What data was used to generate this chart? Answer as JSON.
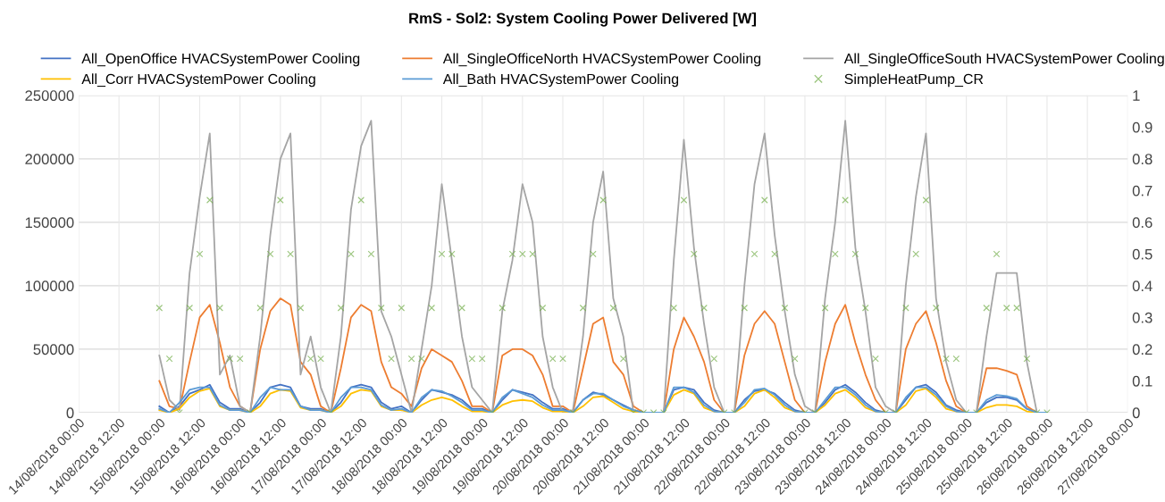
{
  "chart_data": {
    "type": "line",
    "title": "RmS - Sol2: System Cooling Power Delivered [W]",
    "x": [
      "2018-08-15T00:00",
      "2018-08-15T03:00",
      "2018-08-15T06:00",
      "2018-08-15T09:00",
      "2018-08-15T12:00",
      "2018-08-15T15:00",
      "2018-08-15T18:00",
      "2018-08-15T21:00",
      "2018-08-16T00:00",
      "2018-08-16T03:00",
      "2018-08-16T06:00",
      "2018-08-16T09:00",
      "2018-08-16T12:00",
      "2018-08-16T15:00",
      "2018-08-16T18:00",
      "2018-08-16T21:00",
      "2018-08-17T00:00",
      "2018-08-17T03:00",
      "2018-08-17T06:00",
      "2018-08-17T09:00",
      "2018-08-17T12:00",
      "2018-08-17T15:00",
      "2018-08-17T18:00",
      "2018-08-17T21:00",
      "2018-08-18T00:00",
      "2018-08-18T03:00",
      "2018-08-18T06:00",
      "2018-08-18T09:00",
      "2018-08-18T12:00",
      "2018-08-18T15:00",
      "2018-08-18T18:00",
      "2018-08-18T21:00",
      "2018-08-19T00:00",
      "2018-08-19T03:00",
      "2018-08-19T06:00",
      "2018-08-19T09:00",
      "2018-08-19T12:00",
      "2018-08-19T15:00",
      "2018-08-19T18:00",
      "2018-08-19T21:00",
      "2018-08-20T00:00",
      "2018-08-20T03:00",
      "2018-08-20T06:00",
      "2018-08-20T09:00",
      "2018-08-20T12:00",
      "2018-08-20T15:00",
      "2018-08-20T18:00",
      "2018-08-20T21:00",
      "2018-08-21T00:00",
      "2018-08-21T03:00",
      "2018-08-21T06:00",
      "2018-08-21T09:00",
      "2018-08-21T12:00",
      "2018-08-21T15:00",
      "2018-08-21T18:00",
      "2018-08-21T21:00",
      "2018-08-22T00:00",
      "2018-08-22T03:00",
      "2018-08-22T06:00",
      "2018-08-22T09:00",
      "2018-08-22T12:00",
      "2018-08-22T15:00",
      "2018-08-22T18:00",
      "2018-08-22T21:00",
      "2018-08-23T00:00",
      "2018-08-23T03:00",
      "2018-08-23T06:00",
      "2018-08-23T09:00",
      "2018-08-23T12:00",
      "2018-08-23T15:00",
      "2018-08-23T18:00",
      "2018-08-23T21:00",
      "2018-08-24T00:00",
      "2018-08-24T03:00",
      "2018-08-24T06:00",
      "2018-08-24T09:00",
      "2018-08-24T12:00",
      "2018-08-24T15:00",
      "2018-08-24T18:00",
      "2018-08-24T21:00",
      "2018-08-25T00:00",
      "2018-08-25T03:00",
      "2018-08-25T06:00",
      "2018-08-25T09:00",
      "2018-08-25T12:00",
      "2018-08-25T15:00",
      "2018-08-25T18:00",
      "2018-08-25T21:00",
      "2018-08-26T00:00"
    ],
    "series": [
      {
        "name": "All_OpenOffice HVACSystemPower Cooling",
        "color": "#4472c4",
        "values": [
          5000,
          0,
          5000,
          15000,
          18000,
          22000,
          8000,
          3000,
          3000,
          0,
          8000,
          20000,
          22000,
          20000,
          5000,
          3000,
          3000,
          0,
          8000,
          20000,
          22000,
          20000,
          8000,
          3000,
          5000,
          0,
          10000,
          18000,
          16000,
          14000,
          10000,
          3000,
          3000,
          0,
          10000,
          18000,
          16000,
          14000,
          8000,
          3000,
          3000,
          0,
          10000,
          16000,
          14000,
          10000,
          6000,
          2000,
          0,
          0,
          0,
          18000,
          20000,
          18000,
          8000,
          2000,
          0,
          0,
          10000,
          17000,
          18000,
          15000,
          8000,
          2000,
          0,
          0,
          8000,
          18000,
          22000,
          16000,
          8000,
          2000,
          0,
          0,
          10000,
          20000,
          22000,
          16000,
          6000,
          2000,
          0,
          0,
          8000,
          12000,
          12000,
          10000,
          3000,
          0,
          0
        ]
      },
      {
        "name": "All_SingleOfficeNorth HVACSystemPower Cooling",
        "color": "#ed7d31",
        "values": [
          25000,
          5000,
          3000,
          40000,
          75000,
          85000,
          55000,
          20000,
          5000,
          0,
          50000,
          80000,
          90000,
          85000,
          40000,
          30000,
          5000,
          0,
          35000,
          75000,
          85000,
          80000,
          40000,
          20000,
          15000,
          5000,
          35000,
          50000,
          45000,
          40000,
          25000,
          5000,
          5000,
          0,
          45000,
          50000,
          50000,
          45000,
          30000,
          5000,
          5000,
          0,
          35000,
          70000,
          75000,
          40000,
          30000,
          5000,
          0,
          0,
          0,
          50000,
          75000,
          60000,
          40000,
          10000,
          0,
          0,
          45000,
          70000,
          80000,
          70000,
          40000,
          10000,
          0,
          0,
          40000,
          70000,
          85000,
          55000,
          30000,
          10000,
          0,
          0,
          50000,
          70000,
          80000,
          55000,
          25000,
          5000,
          0,
          0,
          35000,
          35000,
          33000,
          30000,
          5000,
          0,
          0
        ]
      },
      {
        "name": "All_SingleOfficeSouth HVACSystemPower Cooling",
        "color": "#a5a5a5",
        "values": [
          45000,
          10000,
          2000,
          110000,
          170000,
          220000,
          30000,
          45000,
          5000,
          0,
          60000,
          140000,
          200000,
          220000,
          30000,
          60000,
          20000,
          0,
          60000,
          160000,
          210000,
          230000,
          80000,
          60000,
          30000,
          0,
          50000,
          100000,
          180000,
          120000,
          60000,
          20000,
          10000,
          0,
          80000,
          120000,
          180000,
          150000,
          60000,
          20000,
          0,
          2000,
          60000,
          150000,
          190000,
          90000,
          60000,
          0,
          0,
          0,
          0,
          120000,
          215000,
          130000,
          70000,
          20000,
          0,
          0,
          100000,
          180000,
          220000,
          140000,
          80000,
          30000,
          5000,
          0,
          90000,
          150000,
          230000,
          130000,
          80000,
          20000,
          5000,
          0,
          100000,
          170000,
          220000,
          90000,
          40000,
          10000,
          0,
          0,
          60000,
          110000,
          110000,
          110000,
          40000,
          0,
          0
        ]
      },
      {
        "name": "All_Corr HVACSystemPower Cooling",
        "color": "#ffc000",
        "values": [
          2000,
          0,
          3000,
          12000,
          17000,
          19000,
          5000,
          2000,
          2000,
          0,
          5000,
          15000,
          18000,
          17000,
          4000,
          2000,
          2000,
          0,
          5000,
          15000,
          18000,
          17000,
          5000,
          2000,
          2000,
          0,
          6000,
          10000,
          12000,
          10000,
          5000,
          1000,
          1000,
          0,
          6000,
          9000,
          10000,
          9000,
          4000,
          1000,
          1000,
          0,
          5000,
          12000,
          13000,
          8000,
          3000,
          1000,
          0,
          0,
          0,
          14000,
          18000,
          15000,
          4000,
          1000,
          0,
          0,
          5000,
          15000,
          18000,
          12000,
          4000,
          1000,
          0,
          0,
          6000,
          15000,
          18000,
          12000,
          4000,
          1000,
          0,
          0,
          6000,
          17000,
          19000,
          12000,
          3000,
          1000,
          0,
          0,
          4000,
          6000,
          6000,
          5000,
          1000,
          0,
          0
        ]
      },
      {
        "name": "All_Bath HVACSystemPower Cooling",
        "color": "#5b9bd5",
        "values": [
          3000,
          0,
          8000,
          18000,
          20000,
          20000,
          6000,
          2000,
          2000,
          0,
          12000,
          20000,
          18000,
          18000,
          5000,
          2000,
          2000,
          0,
          12000,
          20000,
          20000,
          18000,
          6000,
          2000,
          3000,
          0,
          12000,
          18000,
          17000,
          13000,
          8000,
          2000,
          2000,
          0,
          12000,
          18000,
          15000,
          12000,
          6000,
          2000,
          2000,
          0,
          10000,
          15000,
          15000,
          10000,
          5000,
          2000,
          0,
          0,
          0,
          20000,
          20000,
          16000,
          6000,
          1000,
          0,
          0,
          8000,
          18000,
          19000,
          14000,
          6000,
          1000,
          0,
          0,
          10000,
          20000,
          20000,
          14000,
          6000,
          1000,
          0,
          0,
          12000,
          20000,
          20000,
          14000,
          5000,
          1000,
          0,
          0,
          10000,
          14000,
          13000,
          11000,
          3000,
          0,
          0
        ]
      },
      {
        "name": "SimpleHeatPump_CR",
        "color": "#70ad47",
        "type": "scatter",
        "marker": "cross",
        "axis": "y2",
        "values": [
          0.33,
          0.17,
          0,
          0.33,
          0.5,
          0.67,
          0.33,
          0.17,
          0.17,
          0,
          0.33,
          0.5,
          0.67,
          0.5,
          0.33,
          0.17,
          0.17,
          0,
          0.33,
          0.5,
          0.67,
          0.5,
          0.33,
          0.17,
          0.33,
          0.17,
          0.17,
          0.33,
          0.5,
          0.5,
          0.33,
          0.17,
          0.17,
          0,
          0.33,
          0.5,
          0.5,
          0.5,
          0.33,
          0.17,
          0.17,
          0,
          0.33,
          0.5,
          0.67,
          0.33,
          0.17,
          0,
          0,
          0,
          0,
          0.33,
          0.67,
          0.5,
          0.33,
          0.17,
          0,
          0,
          0.33,
          0.5,
          0.67,
          0.5,
          0.33,
          0.17,
          0,
          0,
          0.33,
          0.5,
          0.67,
          0.5,
          0.33,
          0.17,
          0,
          0,
          0.33,
          0.5,
          0.67,
          0.33,
          0.17,
          0.17,
          0,
          0,
          0.33,
          0.5,
          0.33,
          0.33,
          0.17,
          0,
          0
        ]
      }
    ],
    "xlim": [
      "2018-08-14T00:00",
      "2018-08-27T00:00"
    ],
    "xticks": [
      {
        "value": "2018-08-14T00:00",
        "label": "14/08/2018 00:00"
      },
      {
        "value": "2018-08-14T12:00",
        "label": "14/08/2018 12:00"
      },
      {
        "value": "2018-08-15T00:00",
        "label": "15/08/2018 00:00"
      },
      {
        "value": "2018-08-15T12:00",
        "label": "15/08/2018 12:00"
      },
      {
        "value": "2018-08-16T00:00",
        "label": "16/08/2018 00:00"
      },
      {
        "value": "2018-08-16T12:00",
        "label": "16/08/2018 12:00"
      },
      {
        "value": "2018-08-17T00:00",
        "label": "17/08/2018 00:00"
      },
      {
        "value": "2018-08-17T12:00",
        "label": "17/08/2018 12:00"
      },
      {
        "value": "2018-08-18T00:00",
        "label": "18/08/2018 00:00"
      },
      {
        "value": "2018-08-18T12:00",
        "label": "18/08/2018 12:00"
      },
      {
        "value": "2018-08-19T00:00",
        "label": "19/08/2018 00:00"
      },
      {
        "value": "2018-08-19T12:00",
        "label": "19/08/2018 12:00"
      },
      {
        "value": "2018-08-20T00:00",
        "label": "20/08/2018 00:00"
      },
      {
        "value": "2018-08-20T12:00",
        "label": "20/08/2018 12:00"
      },
      {
        "value": "2018-08-21T00:00",
        "label": "21/08/2018 00:00"
      },
      {
        "value": "2018-08-21T12:00",
        "label": "21/08/2018 12:00"
      },
      {
        "value": "2018-08-22T00:00",
        "label": "22/08/2018 00:00"
      },
      {
        "value": "2018-08-22T12:00",
        "label": "22/08/2018 12:00"
      },
      {
        "value": "2018-08-23T00:00",
        "label": "23/08/2018 00:00"
      },
      {
        "value": "2018-08-23T12:00",
        "label": "23/08/2018 12:00"
      },
      {
        "value": "2018-08-24T00:00",
        "label": "24/08/2018 00:00"
      },
      {
        "value": "2018-08-24T12:00",
        "label": "24/08/2018 12:00"
      },
      {
        "value": "2018-08-25T00:00",
        "label": "25/08/2018 00:00"
      },
      {
        "value": "2018-08-25T12:00",
        "label": "25/08/2018 12:00"
      },
      {
        "value": "2018-08-26T00:00",
        "label": "26/08/2018 00:00"
      },
      {
        "value": "2018-08-26T12:00",
        "label": "26/08/2018 12:00"
      },
      {
        "value": "2018-08-27T00:00",
        "label": "27/08/2018 00:00"
      }
    ],
    "ylim": [
      0,
      250000
    ],
    "yticks": [
      0,
      50000,
      100000,
      150000,
      200000,
      250000
    ],
    "y2lim": [
      0,
      1
    ],
    "y2ticks": [
      0,
      0.1,
      0.2,
      0.3,
      0.4,
      0.5,
      0.6,
      0.7,
      0.8,
      0.9,
      1
    ],
    "grid": true,
    "legend": "top",
    "marker": "none",
    "line_style": "solid"
  }
}
